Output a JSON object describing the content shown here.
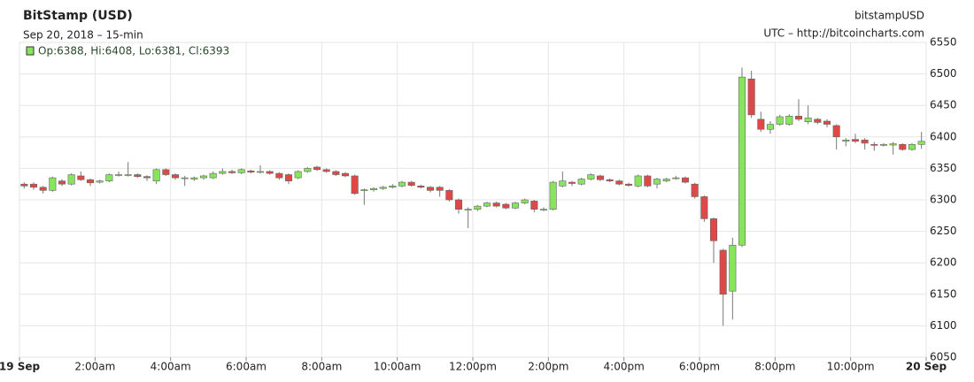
{
  "chart_data": {
    "type": "candlestick",
    "title": "BitStamp (USD)",
    "subtitle": "Sep 20, 2018 – 15-min",
    "source_name": "bitstampUSD",
    "source_note": "UTC – http://bitcoincharts.com",
    "info": "Op:6388, Hi:6408, Lo:6381, Cl:6393",
    "up_color": "#88e35e",
    "down_color": "#e04848",
    "grid": true,
    "xlim": [
      0,
      24
    ],
    "xticks": [
      {
        "value": 0,
        "label": "19 Sep"
      },
      {
        "value": 2,
        "label": "2:00am"
      },
      {
        "value": 4,
        "label": "4:00am"
      },
      {
        "value": 6,
        "label": "6:00am"
      },
      {
        "value": 8,
        "label": "8:00am"
      },
      {
        "value": 10,
        "label": "10:00am"
      },
      {
        "value": 12,
        "label": "12:00pm"
      },
      {
        "value": 14,
        "label": "2:00pm"
      },
      {
        "value": 16,
        "label": "4:00pm"
      },
      {
        "value": 18,
        "label": "6:00pm"
      },
      {
        "value": 20,
        "label": "8:00pm"
      },
      {
        "value": 22,
        "label": "10:00pm"
      },
      {
        "value": 24,
        "label": "20 Sep"
      }
    ],
    "ylim": [
      6050,
      6550
    ],
    "yticks": [
      6050,
      6100,
      6150,
      6200,
      6250,
      6300,
      6350,
      6400,
      6450,
      6500,
      6550
    ],
    "x": [
      0,
      0.25,
      0.5,
      0.75,
      1,
      1.25,
      1.5,
      1.75,
      2,
      2.25,
      2.5,
      2.75,
      3,
      3.25,
      3.5,
      3.75,
      4,
      4.25,
      4.5,
      4.75,
      5,
      5.25,
      5.5,
      5.75,
      6,
      6.25,
      6.5,
      6.75,
      7,
      7.25,
      7.5,
      7.75,
      8,
      8.25,
      8.5,
      8.75,
      9,
      9.25,
      9.5,
      9.75,
      10,
      10.25,
      10.5,
      10.75,
      11,
      11.25,
      11.5,
      11.75,
      12,
      12.25,
      12.5,
      12.75,
      13,
      13.25,
      13.5,
      13.75,
      14,
      14.25,
      14.5,
      14.75,
      15,
      15.25,
      15.5,
      15.75,
      16,
      16.25,
      16.5,
      16.75,
      17,
      17.25,
      17.5,
      17.75,
      18,
      18.25,
      18.5,
      18.75,
      19,
      19.25,
      19.5,
      19.75,
      20,
      20.25,
      20.5,
      20.75,
      21,
      21.25,
      21.5,
      21.75,
      22,
      22.25,
      22.5,
      22.75,
      23,
      23.25,
      23.5,
      23.75
    ],
    "open": [
      6325,
      6325,
      6320,
      6315,
      6330,
      6325,
      6338,
      6332,
      6328,
      6330,
      6340,
      6340,
      6340,
      6337,
      6330,
      6348,
      6340,
      6335,
      6333,
      6335,
      6335,
      6342,
      6345,
      6343,
      6346,
      6344,
      6345,
      6342,
      6340,
      6335,
      6345,
      6352,
      6348,
      6345,
      6342,
      6338,
      6315,
      6316,
      6318,
      6320,
      6322,
      6328,
      6322,
      6320,
      6320,
      6315,
      6300,
      6285,
      6285,
      6290,
      6295,
      6293,
      6287,
      6295,
      6298,
      6285,
      6285,
      6322,
      6328,
      6325,
      6333,
      6338,
      6332,
      6330,
      6325,
      6322,
      6338,
      6325,
      6330,
      6335,
      6335,
      6325,
      6305,
      6270,
      6220,
      6155,
      6228,
      6492,
      6428,
      6412,
      6420,
      6420,
      6433,
      6424,
      6428,
      6425,
      6418,
      6393,
      6396,
      6395,
      6388,
      6388,
      6387,
      6388,
      6380,
      6388
    ],
    "high": [
      6328,
      6328,
      6322,
      6337,
      6333,
      6342,
      6345,
      6334,
      6332,
      6342,
      6345,
      6360,
      6342,
      6339,
      6350,
      6350,
      6342,
      6338,
      6337,
      6340,
      6345,
      6350,
      6348,
      6350,
      6348,
      6355,
      6347,
      6344,
      6342,
      6347,
      6352,
      6354,
      6350,
      6347,
      6344,
      6340,
      6318,
      6320,
      6322,
      6325,
      6330,
      6330,
      6324,
      6322,
      6322,
      6317,
      6302,
      6288,
      6292,
      6297,
      6297,
      6295,
      6297,
      6302,
      6300,
      6288,
      6330,
      6345,
      6330,
      6335,
      6342,
      6340,
      6334,
      6332,
      6327,
      6340,
      6340,
      6335,
      6335,
      6338,
      6337,
      6327,
      6307,
      6272,
      6222,
      6240,
      6510,
      6505,
      6440,
      6425,
      6435,
      6436,
      6460,
      6450,
      6430,
      6428,
      6420,
      6398,
      6405,
      6398,
      6392,
      6390,
      6392,
      6390,
      6390,
      6408
    ],
    "low": [
      6318,
      6316,
      6310,
      6313,
      6322,
      6323,
      6330,
      6322,
      6326,
      6328,
      6337,
      6337,
      6335,
      6330,
      6325,
      6338,
      6332,
      6322,
      6330,
      6332,
      6333,
      6340,
      6341,
      6341,
      6342,
      6342,
      6340,
      6332,
      6325,
      6333,
      6343,
      6346,
      6343,
      6338,
      6336,
      6308,
      6292,
      6313,
      6316,
      6318,
      6320,
      6321,
      6318,
      6312,
      6305,
      6297,
      6278,
      6255,
      6282,
      6288,
      6288,
      6285,
      6285,
      6293,
      6280,
      6282,
      6283,
      6320,
      6322,
      6323,
      6331,
      6330,
      6328,
      6323,
      6321,
      6320,
      6320,
      6318,
      6328,
      6332,
      6326,
      6302,
      6265,
      6200,
      6100,
      6110,
      6225,
      6430,
      6408,
      6405,
      6418,
      6418,
      6425,
      6420,
      6420,
      6415,
      6380,
      6385,
      6390,
      6380,
      6378,
      6385,
      6372,
      6378,
      6378,
      6381
    ],
    "close": [
      6322,
      6320,
      6315,
      6335,
      6325,
      6340,
      6332,
      6327,
      6330,
      6340,
      6340,
      6340,
      6337,
      6335,
      6348,
      6340,
      6335,
      6335,
      6335,
      6338,
      6342,
      6345,
      6343,
      6348,
      6344,
      6345,
      6342,
      6335,
      6330,
      6345,
      6350,
      6348,
      6345,
      6340,
      6338,
      6310,
      6316,
      6318,
      6320,
      6322,
      6328,
      6323,
      6320,
      6315,
      6315,
      6300,
      6285,
      6285,
      6290,
      6295,
      6290,
      6287,
      6295,
      6300,
      6285,
      6285,
      6328,
      6330,
      6326,
      6333,
      6340,
      6332,
      6330,
      6325,
      6323,
      6338,
      6322,
      6333,
      6333,
      6335,
      6328,
      6305,
      6270,
      6235,
      6150,
      6228,
      6495,
      6435,
      6412,
      6420,
      6432,
      6433,
      6428,
      6430,
      6423,
      6420,
      6400,
      6395,
      6393,
      6390,
      6387,
      6388,
      6389,
      6380,
      6388,
      6393
    ]
  }
}
